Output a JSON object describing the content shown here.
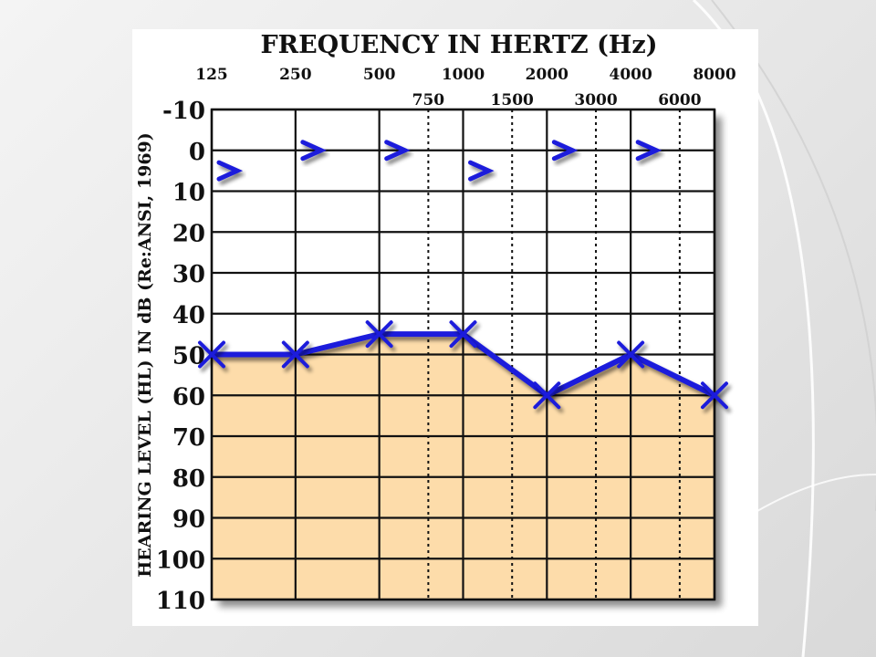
{
  "chart_data": {
    "type": "line",
    "title": "FREQUENCY IN HERTZ (Hz)",
    "ylabel": "HEARING LEVEL (HL) IN dB (Re:ANSI, 1969)",
    "xlabel": "",
    "x_ticks_top": [
      "125",
      "250",
      "500",
      "1000",
      "2000",
      "4000",
      "8000"
    ],
    "x_ticks_inter": [
      "750",
      "1500",
      "3000",
      "6000"
    ],
    "y_ticks": [
      "-10",
      "0",
      "10",
      "20",
      "30",
      "40",
      "50",
      "60",
      "70",
      "80",
      "90",
      "100",
      "110"
    ],
    "ylim": [
      -10,
      110
    ],
    "y_inverted": true,
    "x_scale": "log2",
    "grid": true,
    "series": [
      {
        "marker": "X",
        "color": "#1a1adb",
        "x": [
          125,
          250,
          500,
          1000,
          2000,
          4000,
          8000
        ],
        "y": [
          50,
          50,
          45,
          45,
          60,
          50,
          60
        ]
      },
      {
        "marker": ">",
        "color": "#1a1adb",
        "x": [
          125,
          250,
          500,
          1000,
          2000,
          4000
        ],
        "y": [
          5,
          0,
          0,
          5,
          0,
          0
        ]
      }
    ],
    "fill_below_curve_color": "#fddcaa"
  }
}
